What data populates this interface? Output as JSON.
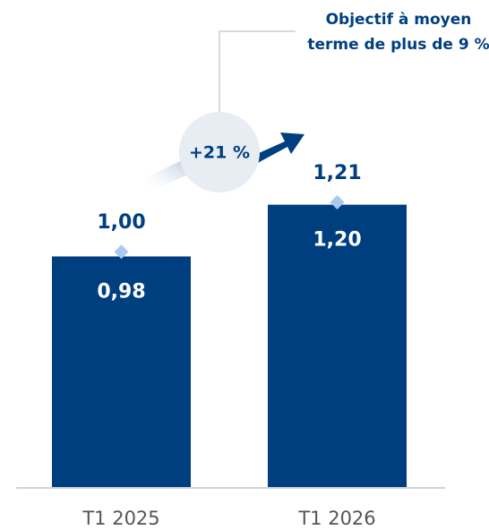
{
  "chart_data": {
    "type": "bar",
    "categories": [
      "T1 2025",
      "T1 2026"
    ],
    "values": [
      0.98,
      1.2
    ],
    "value_labels": [
      "0,98",
      "1,20"
    ],
    "color": "#003f7f",
    "markers": {
      "values": [
        1.0,
        1.21
      ],
      "value_labels": [
        "1,00",
        "1,21"
      ],
      "color": "#a9c9ee"
    },
    "growth_label": "+21 %",
    "note": [
      "Objectif à moyen",
      "terme de plus de 9 %"
    ]
  }
}
